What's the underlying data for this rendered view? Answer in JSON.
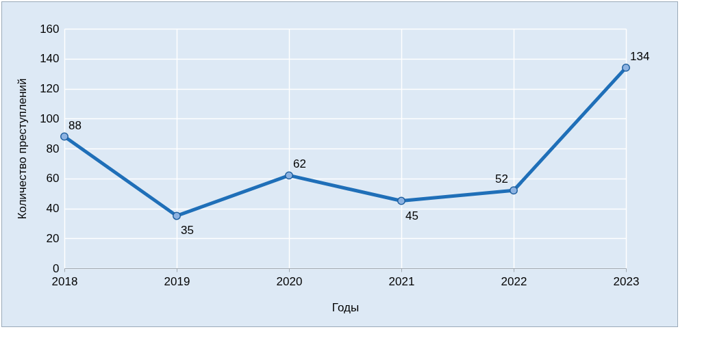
{
  "chart_data": {
    "type": "line",
    "xlabel": "Годы",
    "ylabel": "Количество преступлений",
    "categories": [
      "2018",
      "2019",
      "2020",
      "2021",
      "2022",
      "2023"
    ],
    "series": [
      {
        "color": "#1f6fb8",
        "values": [
          88,
          35,
          62,
          45,
          52,
          134
        ]
      }
    ],
    "ylim": [
      0,
      160
    ],
    "yticks": [
      0,
      20,
      40,
      60,
      80,
      100,
      120,
      140,
      160
    ],
    "grid": true,
    "marker": "circle",
    "data_labels": true,
    "legend": false
  }
}
